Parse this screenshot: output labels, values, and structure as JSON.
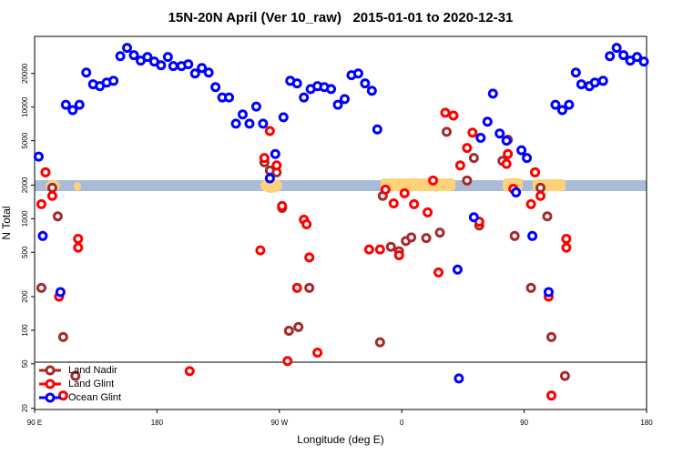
{
  "chart_data": {
    "type": "scatter",
    "title": "15N-20N April (Ver 10_raw)   2015-01-01 to 2020-12-31",
    "xlabel": "Longitude (deg E)",
    "ylabel": "N Total",
    "xlim": [
      90,
      540
    ],
    "ylim": [
      19.5,
      43000
    ],
    "yscale": "log",
    "xticks": [
      {
        "value": 90,
        "label": "90 E"
      },
      180,
      {
        "value": 270,
        "label": "90 W"
      },
      {
        "value": 360,
        "label": "0"
      },
      {
        "value": 450,
        "label": "90"
      },
      {
        "value": 540,
        "label": "180"
      }
    ],
    "yticks": [
      20,
      50,
      100,
      200,
      500,
      1000,
      2000,
      5000,
      10000,
      20000
    ],
    "legend": "lower left",
    "series": [
      {
        "name": "Land Nadir",
        "color": "#a52a2a",
        "x": [
          95,
          98,
          103,
          107,
          111,
          120,
          259,
          263,
          268,
          272,
          277,
          284,
          292,
          346,
          344,
          352,
          358,
          363,
          367,
          378,
          388,
          393,
          408,
          413,
          417,
          434,
          438,
          443,
          455,
          458,
          462,
          467,
          470,
          480
        ],
        "values": [
          240,
          2600,
          1890,
          1050,
          87,
          39,
          3200,
          2700,
          2600,
          1250,
          99,
          107,
          240,
          1600,
          78,
          560,
          510,
          630,
          680,
          670,
          750,
          6000,
          2200,
          3500,
          870,
          3300,
          5100,
          700,
          240,
          2600,
          1890,
          1050,
          87,
          39
        ]
      },
      {
        "name": "Land Glint",
        "color": "#ff0000",
        "x": [
          95,
          98,
          103,
          108,
          111,
          122,
          122,
          204,
          256,
          259,
          263,
          268,
          272,
          276,
          283,
          288,
          290,
          292,
          298,
          336,
          344,
          348,
          354,
          358,
          362,
          369,
          379,
          383,
          387,
          392,
          398,
          403,
          408,
          412,
          417,
          437,
          438,
          442,
          455,
          458,
          462,
          468,
          470,
          481,
          481
        ],
        "values": [
          1350,
          2600,
          1600,
          200,
          26,
          660,
          550,
          43,
          520,
          3500,
          6100,
          3000,
          1300,
          53,
          240,
          980,
          890,
          450,
          63,
          530,
          530,
          1820,
          1370,
          470,
          1690,
          1350,
          1140,
          2200,
          330,
          8900,
          8400,
          3000,
          4300,
          5900,
          940,
          3100,
          3800,
          1850,
          1350,
          2600,
          1600,
          200,
          26,
          660,
          550
        ]
      },
      {
        "name": "Ocean Glint",
        "color": "#0000ff",
        "x": [
          93,
          96,
          109,
          113,
          118,
          123,
          128,
          133,
          138,
          143,
          148,
          153,
          158,
          163,
          168,
          173,
          178,
          183,
          188,
          192,
          198,
          203,
          208,
          213,
          218,
          223,
          228,
          233,
          238,
          243,
          248,
          253,
          258,
          263,
          267,
          273,
          278,
          283,
          288,
          293,
          298,
          303,
          308,
          313,
          318,
          323,
          328,
          333,
          338,
          342,
          401,
          402,
          413,
          418,
          423,
          427,
          432,
          437,
          444,
          448,
          452,
          456,
          468,
          473,
          478,
          483,
          488,
          492,
          498,
          502,
          508,
          513,
          518,
          523,
          528,
          533,
          538
        ],
        "values": [
          3600,
          700,
          220,
          10500,
          9400,
          10500,
          20400,
          16000,
          15400,
          16600,
          17200,
          28600,
          33900,
          29200,
          26100,
          28100,
          25600,
          23700,
          28100,
          23300,
          23300,
          24200,
          20000,
          22400,
          20400,
          15100,
          12200,
          12200,
          7100,
          8600,
          7100,
          10100,
          7100,
          2300,
          3800,
          8100,
          17200,
          16300,
          12200,
          14500,
          15400,
          15100,
          14500,
          10500,
          11800,
          19300,
          20000,
          16300,
          14000,
          6300,
          350,
          37,
          1030,
          5300,
          7400,
          13200,
          5800,
          5000,
          1720,
          4100,
          3500,
          700,
          220,
          10500,
          9400,
          10500,
          20400,
          16000,
          15400,
          16600,
          17200,
          28600,
          33900,
          29200,
          26100,
          28100,
          25600
        ]
      }
    ]
  }
}
